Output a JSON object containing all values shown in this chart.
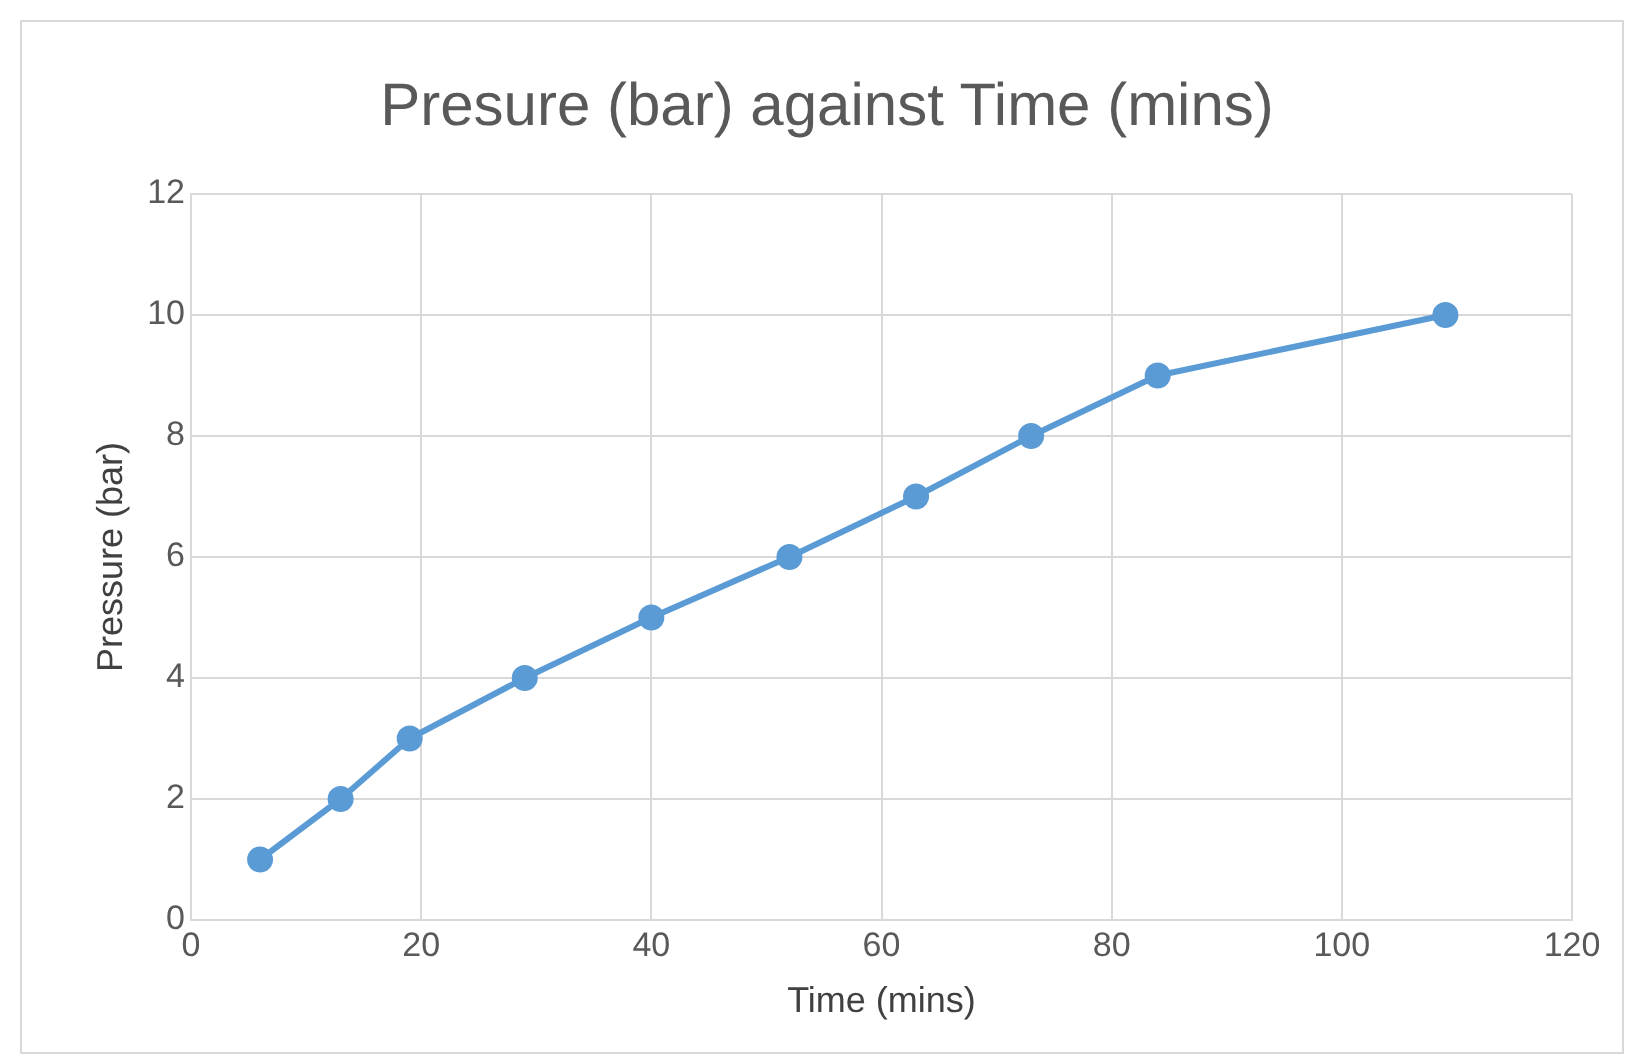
{
  "chart_data": {
    "type": "scatter",
    "title": "Presure (bar) against Time (mins)",
    "xlabel": "Time (mins)",
    "ylabel": "Pressure (bar)",
    "x": [
      6,
      13,
      19,
      29,
      40,
      52,
      63,
      73,
      84,
      109
    ],
    "series": [
      {
        "type": "line",
        "color": "#5b9bd5",
        "values": [
          1,
          2,
          3,
          4,
          5,
          6,
          7,
          8,
          9,
          10
        ]
      }
    ],
    "xlim": [
      0,
      120
    ],
    "xticks": [
      0,
      20,
      40,
      60,
      80,
      100,
      120
    ],
    "ylim": [
      0,
      12
    ],
    "yticks": [
      0,
      2,
      4,
      6,
      8,
      10,
      12
    ],
    "grid": true,
    "legend": false,
    "marker": "circle",
    "line_style": "solid"
  }
}
